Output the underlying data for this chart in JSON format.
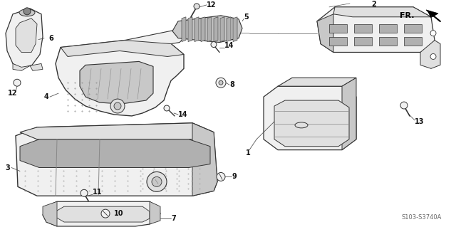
{
  "background_color": "#ffffff",
  "diagram_code": "S103-S3740A",
  "fr_label": "FR.",
  "line_color": "#333333",
  "text_color": "#111111",
  "font_size": 7,
  "fill_light": "#f0f0f0",
  "fill_mid": "#e0e0e0",
  "fill_dark": "#c8c8c8",
  "fill_darker": "#b0b0b0"
}
